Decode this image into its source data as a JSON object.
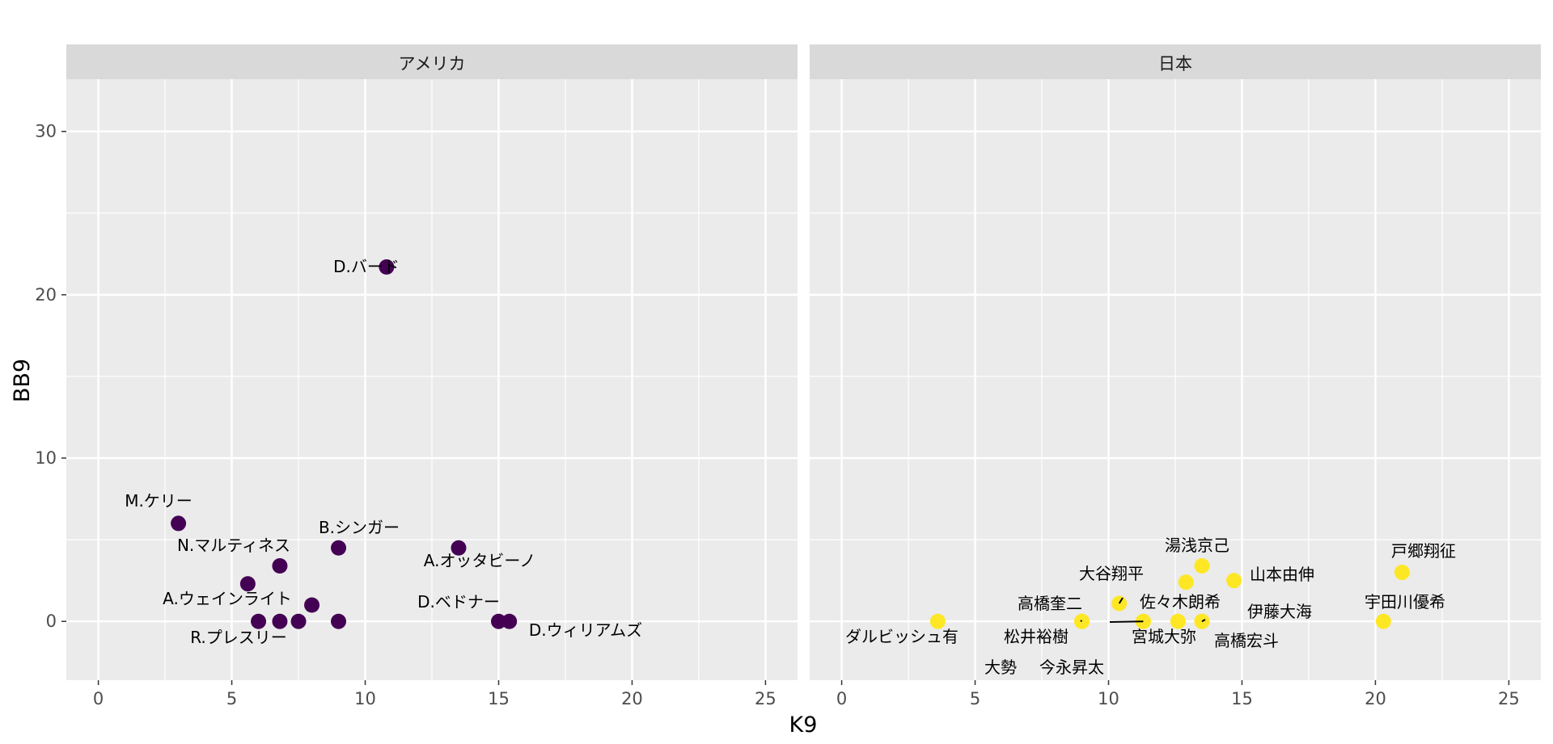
{
  "chart_data": {
    "type": "scatter",
    "xlabel": "K9",
    "ylabel": "BB9",
    "xlim": [
      -1.2,
      26.2
    ],
    "ylim": [
      -3.6,
      33.2
    ],
    "xticks": [
      0,
      5,
      10,
      15,
      20,
      25
    ],
    "yticks": [
      0,
      10,
      20,
      30
    ],
    "grid": true,
    "facets": [
      {
        "title": "アメリカ",
        "color": "#440154",
        "points": [
          {
            "label": "D.バード",
            "x": 10.8,
            "y": 21.7
          },
          {
            "label": "M.ケリー",
            "x": 3.0,
            "y": 6.0
          },
          {
            "label": "B.シンガー",
            "x": 9.0,
            "y": 4.5
          },
          {
            "label": "A.オッタビーノ",
            "x": 13.5,
            "y": 4.5
          },
          {
            "label": "N.マルティネス",
            "x": 6.8,
            "y": 3.4
          },
          {
            "label": "",
            "x": 5.6,
            "y": 2.3
          },
          {
            "label": "A.ウェインライト",
            "x": 8.0,
            "y": 1.0
          },
          {
            "label": "R.プレスリー",
            "x": 6.0,
            "y": 0.0
          },
          {
            "label": "",
            "x": 6.8,
            "y": 0.0
          },
          {
            "label": "",
            "x": 7.5,
            "y": 0.0
          },
          {
            "label": "",
            "x": 9.0,
            "y": 0.0
          },
          {
            "label": "D.ベドナー",
            "x": 15.0,
            "y": 0.0
          },
          {
            "label": "D.ウィリアムズ",
            "x": 15.4,
            "y": 0.0
          }
        ]
      },
      {
        "title": "日本",
        "color": "#fde725",
        "points": [
          {
            "label": "戸郷翔征",
            "x": 21.0,
            "y": 3.0
          },
          {
            "label": "湯浅京己",
            "x": 13.5,
            "y": 3.4
          },
          {
            "label": "山本由伸",
            "x": 14.7,
            "y": 2.5
          },
          {
            "label": "",
            "x": 12.9,
            "y": 2.4
          },
          {
            "label": "大谷翔平",
            "x": 10.4,
            "y": 1.1
          },
          {
            "label": "宇田川優希",
            "x": 20.3,
            "y": 0.0
          },
          {
            "label": "ダルビッシュ有",
            "x": 3.6,
            "y": 0.0
          },
          {
            "label": "高橋奎二",
            "x": 9.0,
            "y": 0.0
          },
          {
            "label": "松井裕樹",
            "x": 9.0,
            "y": 0.0
          },
          {
            "label": "大勢",
            "x": 9.0,
            "y": 0.0
          },
          {
            "label": "佐々木朗希",
            "x": 11.3,
            "y": 0.0
          },
          {
            "label": "宮城大弥",
            "x": 12.6,
            "y": 0.0
          },
          {
            "label": "今永昇太",
            "x": 11.3,
            "y": 0.0
          },
          {
            "label": "伊藤大海",
            "x": 13.5,
            "y": 0.0
          },
          {
            "label": "高橋宏斗",
            "x": 13.5,
            "y": 0.0
          }
        ]
      }
    ]
  }
}
